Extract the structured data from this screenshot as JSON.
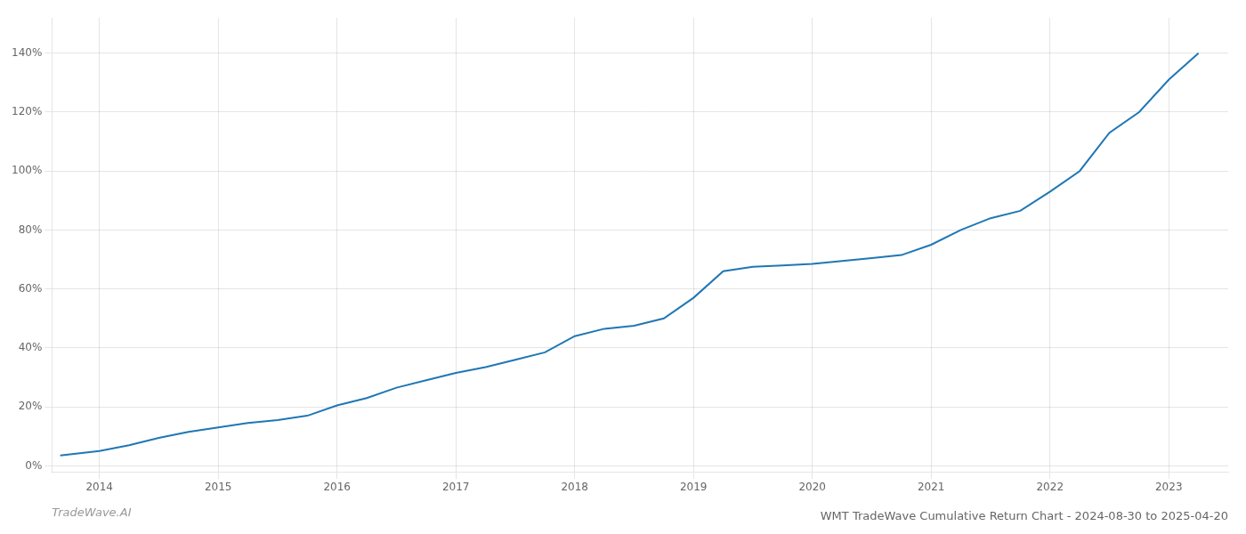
{
  "chart_data": {
    "type": "line",
    "title": "WMT TradeWave Cumulative Return Chart - 2024-08-30 to 2025-04-20",
    "annotations": [
      "TradeWave.AI"
    ],
    "x": [
      2013.67,
      2014.0,
      2014.25,
      2014.5,
      2014.75,
      2015.0,
      2015.25,
      2015.5,
      2015.75,
      2016.0,
      2016.25,
      2016.5,
      2016.75,
      2017.0,
      2017.25,
      2017.5,
      2017.75,
      2018.0,
      2018.25,
      2018.5,
      2018.75,
      2019.0,
      2019.25,
      2019.5,
      2019.75,
      2020.0,
      2020.25,
      2020.5,
      2020.75,
      2021.0,
      2021.25,
      2021.5,
      2021.75,
      2022.0,
      2022.25,
      2022.5,
      2022.75,
      2023.0,
      2023.25
    ],
    "values": [
      3.5,
      5.0,
      7.0,
      9.5,
      11.5,
      13.0,
      14.5,
      15.5,
      17.0,
      20.5,
      23.0,
      26.5,
      29.0,
      31.5,
      33.5,
      36.0,
      38.5,
      44.0,
      46.5,
      47.5,
      50.0,
      57.0,
      66.0,
      67.5,
      68.0,
      68.5,
      69.5,
      70.5,
      71.5,
      75.0,
      80.0,
      84.0,
      86.5,
      93.0,
      100.0,
      113.0,
      120.0,
      131.0,
      140.0
    ],
    "color": "#1f77b4",
    "xlim": [
      2013.6,
      2023.5
    ],
    "xticks": [
      2014,
      2015,
      2016,
      2017,
      2018,
      2019,
      2020,
      2021,
      2022,
      2023
    ],
    "ylim": [
      -2,
      152
    ],
    "yticks": [
      {
        "value": 0,
        "label": "0%"
      },
      {
        "value": 20,
        "label": "20%"
      },
      {
        "value": 40,
        "label": "40%"
      },
      {
        "value": 60,
        "label": "60%"
      },
      {
        "value": 80,
        "label": "80%"
      },
      {
        "value": 100,
        "label": "100%"
      },
      {
        "value": 120,
        "label": "120%"
      },
      {
        "value": 140,
        "label": "140%"
      }
    ],
    "grid": true
  }
}
